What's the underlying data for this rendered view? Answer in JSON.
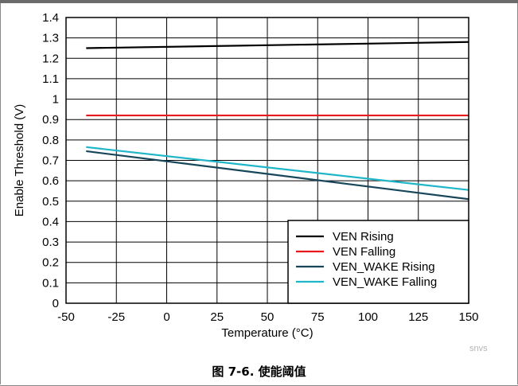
{
  "figure": {
    "caption": "图 7-6. 使能阈值",
    "source_tag": "snvs"
  },
  "chart_data": {
    "type": "line",
    "xlabel": "Temperature (°C)",
    "ylabel": "Enable Threshold (V)",
    "xlim": [
      -50,
      150
    ],
    "ylim": [
      0,
      1.4
    ],
    "x_ticks": [
      -50,
      -25,
      0,
      25,
      50,
      75,
      100,
      125,
      150
    ],
    "y_ticks": [
      0,
      0.1,
      0.2,
      0.3,
      0.4,
      0.5,
      0.6,
      0.7,
      0.8,
      0.9,
      1,
      1.1,
      1.2,
      1.3,
      1.4
    ],
    "grid": true,
    "legend_position": "bottom-right",
    "series": [
      {
        "name": "VEN Rising",
        "color": "#000000",
        "x": [
          -40,
          150
        ],
        "y": [
          1.25,
          1.28
        ]
      },
      {
        "name": "VEN Falling",
        "color": "#e8191c",
        "x": [
          -40,
          150
        ],
        "y": [
          0.92,
          0.92
        ]
      },
      {
        "name": "VEN_WAKE Rising",
        "color": "#16465a",
        "x": [
          -40,
          150
        ],
        "y": [
          0.745,
          0.51
        ]
      },
      {
        "name": "VEN_WAKE Falling",
        "color": "#1fb6c9",
        "x": [
          -40,
          150
        ],
        "y": [
          0.765,
          0.555
        ]
      }
    ]
  }
}
